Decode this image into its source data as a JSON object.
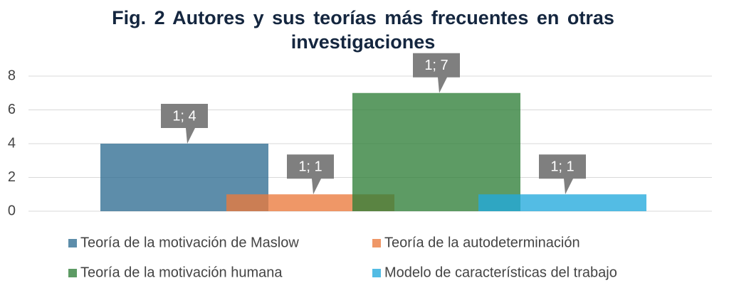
{
  "chart_data": {
    "type": "bar",
    "title": "Fig. 2 Autores y sus teorías más frecuentes en otras investigaciones",
    "ylim": [
      0,
      8
    ],
    "yticks": [
      0,
      2,
      4,
      6,
      8
    ],
    "grid": true,
    "legend": "bottom",
    "series": [
      {
        "name": "Teoría de la motivación de Maslow",
        "color": "#2f6d92",
        "values": [
          4
        ],
        "value_labels": [
          "1; 4"
        ]
      },
      {
        "name": "Teoría de la autodeterminación",
        "color": "#ea7a3c",
        "values": [
          1
        ],
        "value_labels": [
          "1; 1"
        ]
      },
      {
        "name": "Teoría de la motivación humana",
        "color": "#2f7f38",
        "values": [
          7
        ],
        "value_labels": [
          "1; 7"
        ]
      },
      {
        "name": "Modelo de características del trabajo",
        "color": "#22a9dc",
        "values": [
          1
        ],
        "value_labels": [
          "1; 1"
        ]
      }
    ]
  }
}
